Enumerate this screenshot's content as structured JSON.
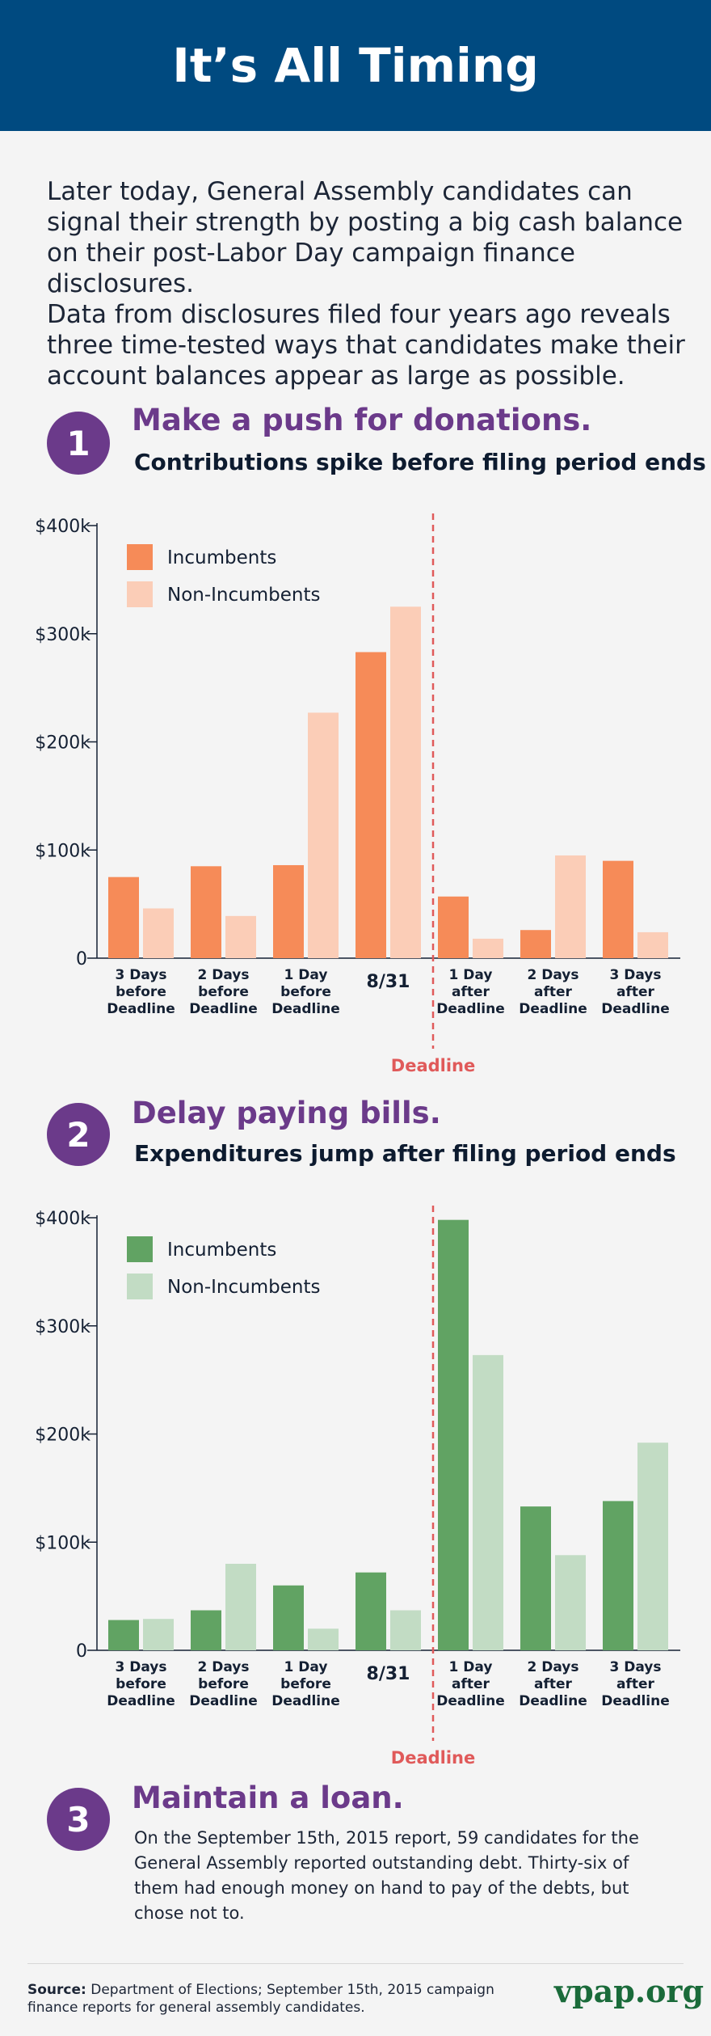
{
  "header": {
    "title": "It’s All Timing"
  },
  "intro": {
    "line1": "Later today, General Assembly candidates can signal their strength by posting a big cash balance on their post-Labor Day campaign finance disclosures.",
    "line2": "Data from disclosures filed four years ago reveals three time-tested ways that candidates make their account balances appear as large as possible."
  },
  "sections": [
    {
      "number": "1",
      "title": "Make a push for donations.",
      "subtitle": "Contributions spike before filing period ends"
    },
    {
      "number": "2",
      "title": "Delay paying bills.",
      "subtitle": "Expenditures jump after filing period ends"
    },
    {
      "number": "3",
      "title": "Maintain a loan.",
      "body": "On the September 15th, 2015 report, 59 candidates for the General Assembly reported outstanding debt. Thirty-six of them had enough money on hand to pay of the debts, but chose not to."
    }
  ],
  "chart_data": [
    {
      "type": "bar",
      "categories": [
        "3 Days before Deadline",
        "2 Days before Deadline",
        "1 Day before Deadline",
        "8/31",
        "1 Day after Deadline",
        "2 Days after Deadline",
        "3 Days after Deadline"
      ],
      "series": [
        {
          "name": "Incumbents",
          "values": [
            75000,
            85000,
            86000,
            283000,
            57000,
            26000,
            90000
          ],
          "color": "#f68b58"
        },
        {
          "name": "Non-Incumbents",
          "values": [
            46000,
            39000,
            227000,
            325000,
            18000,
            95000,
            24000
          ],
          "color": "#fbcdb7"
        }
      ],
      "yticks": [
        "$400k",
        "$300k",
        "$200k",
        "$100k",
        "0"
      ],
      "ylim": [
        0,
        400000
      ],
      "legend": "top-left",
      "annotation": "Deadline",
      "annotation_color": "#e05a5a",
      "deadline_after_category": "8/31"
    },
    {
      "type": "bar",
      "categories": [
        "3 Days before Deadline",
        "2 Days before Deadline",
        "1 Day before Deadline",
        "8/31",
        "1 Day after Deadline",
        "2 Days after Deadline",
        "3 Days after Deadline"
      ],
      "series": [
        {
          "name": "Incumbents",
          "values": [
            28000,
            37000,
            60000,
            72000,
            398000,
            133000,
            138000
          ],
          "color": "#61a363"
        },
        {
          "name": "Non-Incumbents",
          "values": [
            29000,
            80000,
            20000,
            37000,
            273000,
            88000,
            192000
          ],
          "color": "#c2dcc4"
        }
      ],
      "yticks": [
        "$400k",
        "$300k",
        "$200k",
        "$100k",
        "0"
      ],
      "ylim": [
        0,
        400000
      ],
      "legend": "top-left",
      "annotation": "Deadline",
      "annotation_color": "#e05a5a",
      "deadline_after_category": "8/31"
    }
  ],
  "footer": {
    "source_label": "Source:",
    "source_text": " Department of Elections; September 15th, 2015 campaign finance reports for general assembly candidates.",
    "brand": "vpap.org"
  }
}
